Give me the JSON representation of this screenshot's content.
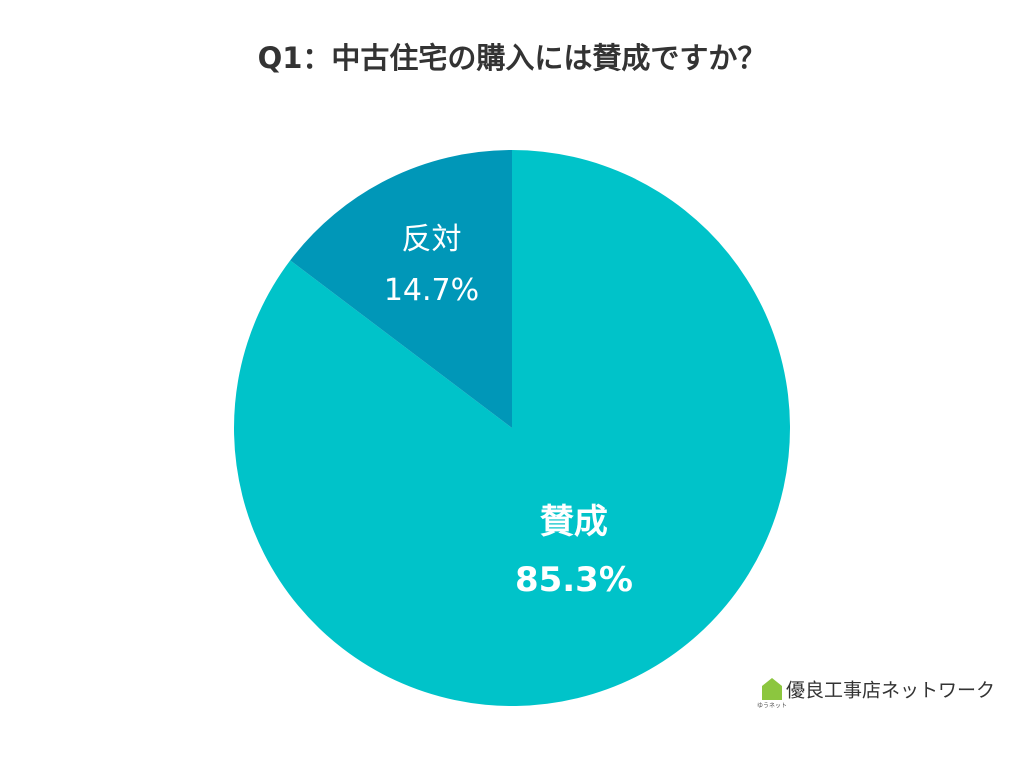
{
  "chart_data": {
    "type": "pie",
    "title": "Q1：中古住宅の購入には賛成ですか？",
    "categories": [
      "賛成",
      "反対"
    ],
    "values": [
      85.3,
      14.7
    ],
    "value_labels": [
      "85.3%",
      "14.7%"
    ],
    "colors": [
      "#00c3c9",
      "#0097b8"
    ],
    "watermark": "優良工事店ネットワーク",
    "watermark_sub": "ゆうネット"
  }
}
